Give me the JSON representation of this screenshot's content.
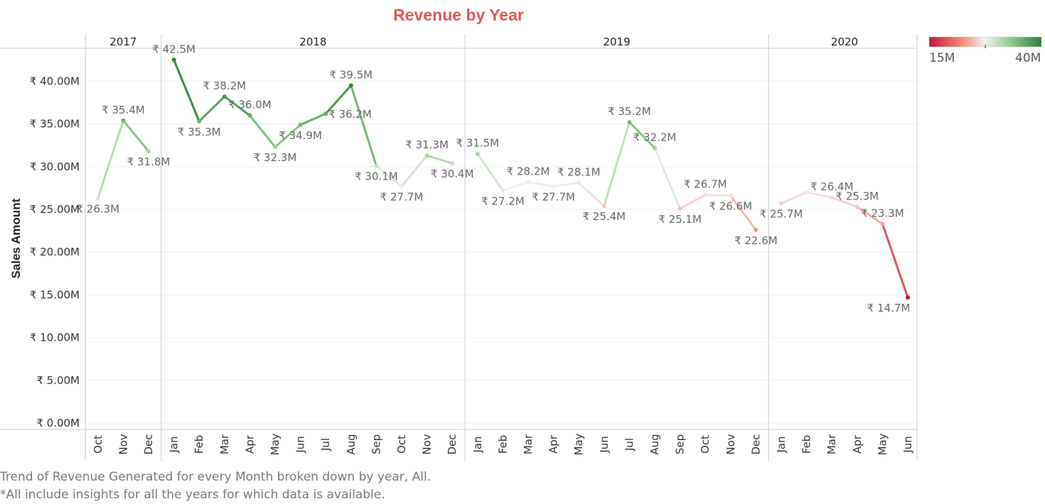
{
  "title": "Revenue by Year",
  "footer": {
    "line1": "Trend of Revenue Generated for every Month broken down by year, All.",
    "line2": "*All include insights for all the years for which data is available."
  },
  "legend": {
    "min_label": "15M",
    "max_label": "40M",
    "colors": [
      "#c0163a",
      "#f48f7e",
      "#f2f2f2",
      "#9fd59a",
      "#2e7d3c"
    ],
    "domain": [
      15,
      40
    ]
  },
  "chart_data": {
    "type": "line",
    "ylabel": "Sales Amount",
    "ylim": [
      0,
      45
    ],
    "yticks": [
      "₹ 0.00M",
      "₹ 5.00M",
      "₹ 10.00M",
      "₹ 15.00M",
      "₹ 20.00M",
      "₹ 25.00M",
      "₹ 30.00M",
      "₹ 35.00M",
      "₹ 40.00M"
    ],
    "ytick_values": [
      0,
      5,
      10,
      15,
      20,
      25,
      30,
      35,
      40
    ],
    "grid": true,
    "panels": [
      {
        "year": "2017",
        "months": [
          "Oct",
          "Nov",
          "Dec"
        ],
        "values": [
          26.3,
          35.4,
          31.8
        ],
        "labels": [
          "₹ 26.3M",
          "₹ 35.4M",
          "₹ 31.8M"
        ]
      },
      {
        "year": "2018",
        "months": [
          "Jan",
          "Feb",
          "Mar",
          "Apr",
          "May",
          "Jun",
          "Jul",
          "Aug",
          "Sep",
          "Oct",
          "Nov",
          "Dec"
        ],
        "values": [
          42.5,
          35.3,
          38.2,
          36.0,
          32.3,
          34.9,
          36.2,
          39.5,
          30.1,
          27.7,
          31.3,
          30.4
        ],
        "labels": [
          "₹ 42.5M",
          "₹ 35.3M",
          "₹ 38.2M",
          "₹ 36.0M",
          "₹ 32.3M",
          "₹ 34.9M",
          "₹ 36.2M",
          "₹ 39.5M",
          "₹ 30.1M",
          "₹ 27.7M",
          "₹ 31.3M",
          "₹ 30.4M"
        ]
      },
      {
        "year": "2019",
        "months": [
          "Jan",
          "Feb",
          "Mar",
          "Apr",
          "May",
          "Jun",
          "Jul",
          "Aug",
          "Sep",
          "Oct",
          "Nov",
          "Dec"
        ],
        "values": [
          31.5,
          27.2,
          28.2,
          27.7,
          28.1,
          25.4,
          35.2,
          32.2,
          25.1,
          26.7,
          26.6,
          22.6
        ],
        "labels": [
          "₹ 31.5M",
          "₹ 27.2M",
          "₹ 28.2M",
          "₹ 27.7M",
          "₹ 28.1M",
          "₹ 25.4M",
          "₹ 35.2M",
          "₹ 32.2M",
          "₹ 25.1M",
          "₹ 26.7M",
          "₹ 26.6M",
          "₹ 22.6M"
        ]
      },
      {
        "year": "2020",
        "months": [
          "Jan",
          "Feb",
          "Mar",
          "Apr",
          "May",
          "Jun"
        ],
        "values": [
          25.7,
          27.0,
          26.4,
          25.3,
          23.3,
          14.7
        ],
        "labels": [
          "₹ 25.7M",
          "",
          "₹ 26.4M",
          "₹ 25.3M",
          "₹ 23.3M",
          "₹ 14.7M"
        ]
      }
    ]
  }
}
